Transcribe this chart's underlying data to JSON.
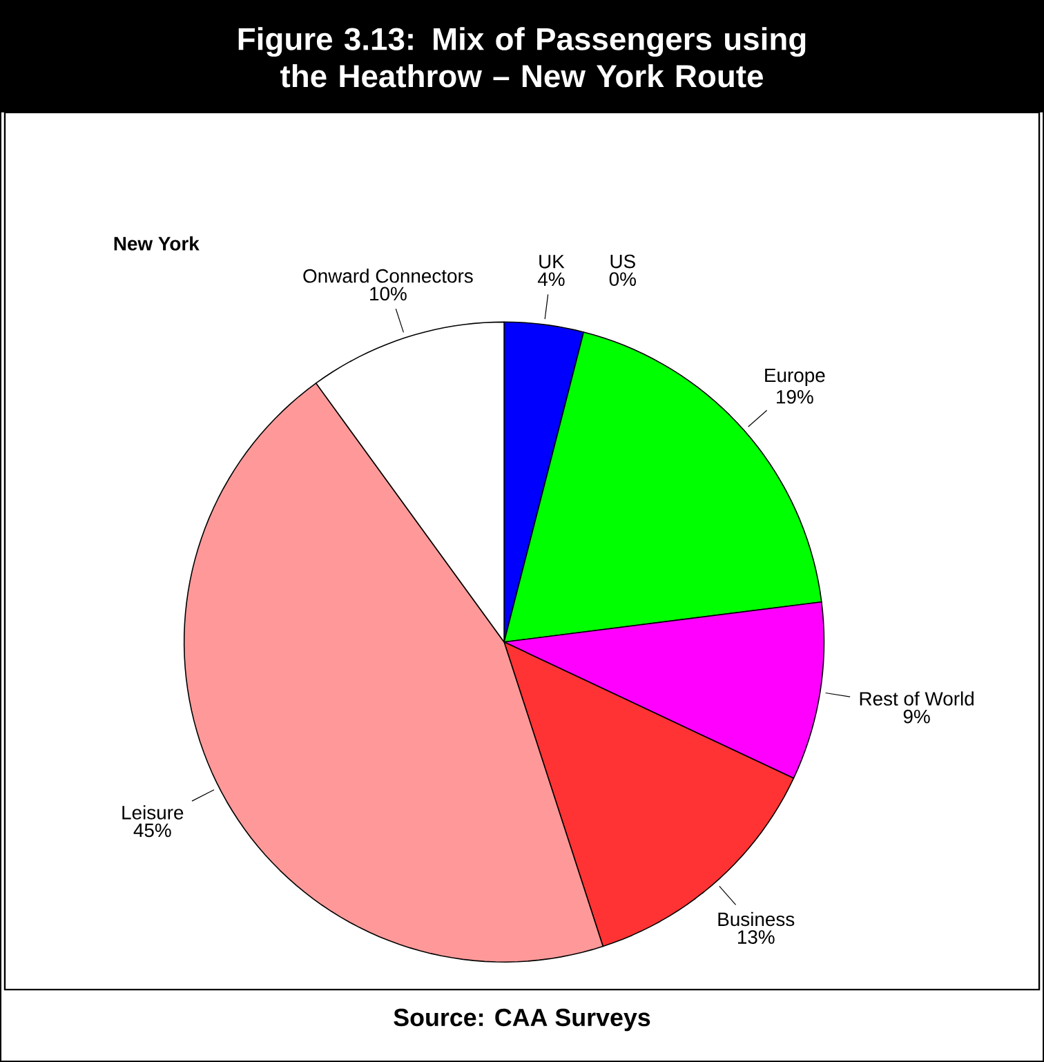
{
  "chart_data": {
    "type": "pie",
    "title": "Figure 3.13: Mix of Passengers using the Heathrow – New York Route",
    "subtitle": "New York",
    "categories": [
      "UK",
      "US",
      "Europe",
      "Rest of World",
      "Business",
      "Leisure",
      "Onward Connectors"
    ],
    "values": [
      4,
      0,
      19,
      9,
      13,
      45,
      10
    ],
    "value_labels": [
      "4%",
      "0%",
      "19%",
      "9%",
      "13%",
      "45%",
      "10%"
    ],
    "colors": [
      "#0000ff",
      "#3366ff",
      "#00ff00",
      "#ff00ff",
      "#ff3333",
      "#ff9999",
      "#ffffff"
    ],
    "annotations": [
      "Source: CAA Surveys"
    ]
  }
}
